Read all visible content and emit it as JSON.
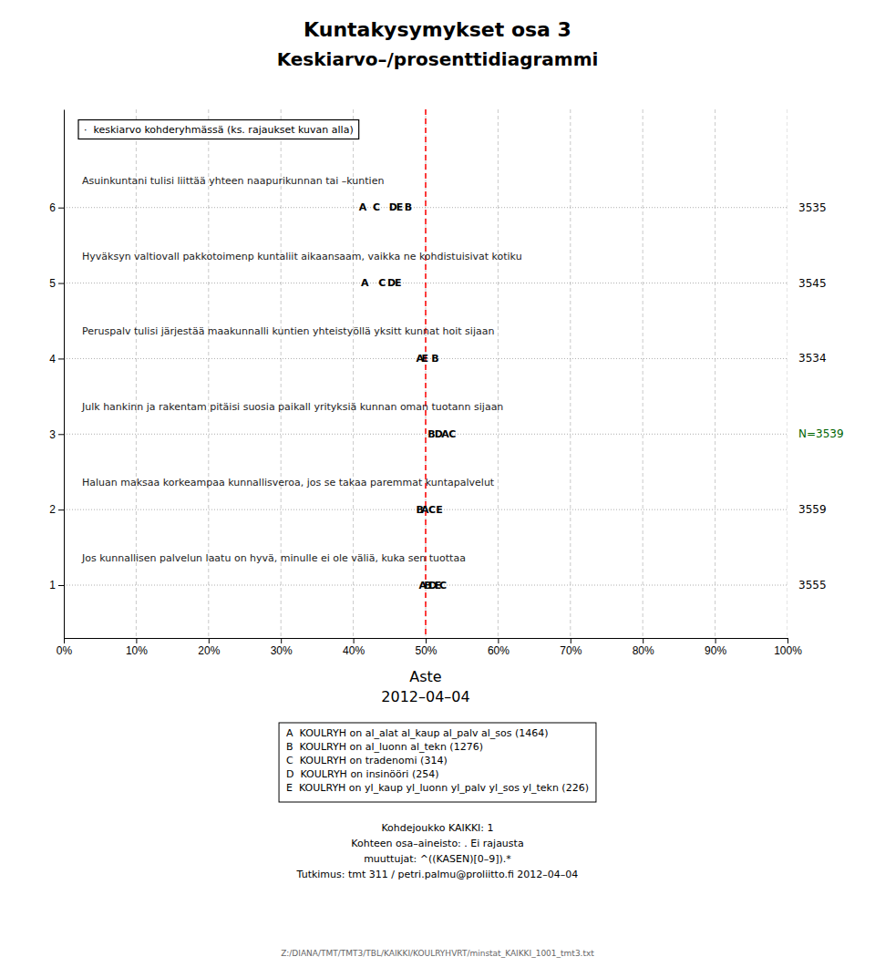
{
  "chart_data": {
    "type": "scatter",
    "title": "Kuntakysymykset osa 3",
    "subtitle": "Keskiarvo–/prosenttidiagrammi",
    "annotations": [
      {
        "text": "·  keskiarvo kohderyhmässä (ks. rajaukset kuvan alla)"
      }
    ],
    "x_label_lines": [
      "Aste",
      "2012–04–04"
    ],
    "xlim": [
      0,
      1
    ],
    "xticks": [
      {
        "value": 0.0,
        "label": "0%"
      },
      {
        "value": 0.1,
        "label": "10%"
      },
      {
        "value": 0.2,
        "label": "20%"
      },
      {
        "value": 0.3,
        "label": "30%"
      },
      {
        "value": 0.4,
        "label": "40%"
      },
      {
        "value": 0.5,
        "label": "50%"
      },
      {
        "value": 0.6,
        "label": "60%"
      },
      {
        "value": 0.7,
        "label": "70%"
      },
      {
        "value": 0.8,
        "label": "80%"
      },
      {
        "value": 0.9,
        "label": "90%"
      },
      {
        "value": 1.0,
        "label": "100%"
      }
    ],
    "ylim": [
      0.3,
      7.3
    ],
    "yticks": [
      1,
      2,
      3,
      4,
      5,
      6
    ],
    "grid": true,
    "marker": "letter",
    "series": [
      {
        "question": "Asuinkuntani tulisi liittää yhteen naapurikunnan tai –kuntien",
        "y": 6,
        "x": [
          0.413,
          0.432,
          0.455,
          0.464,
          0.476
        ],
        "point_labels": [
          "A",
          "C",
          "D",
          "E",
          "B"
        ],
        "n_label": "3535",
        "n_label_color": "black"
      },
      {
        "question": "Hyväksyn valtiovall pakkotoimenp kuntaliit aikaansaam, vaikka ne kohdistuisivat kotiku",
        "y": 5,
        "x": [
          0.416,
          0.44,
          0.453,
          0.462
        ],
        "point_labels": [
          "A",
          "C",
          "D",
          "E"
        ],
        "n_label": "3545",
        "n_label_color": "black"
      },
      {
        "question": "Peruspalv tulisi järjestää maakunnalli kuntien yhteistyöllä yksitt kunnat hoit sijaan",
        "y": 4,
        "x": [
          0.492,
          0.499,
          0.513
        ],
        "point_labels": [
          "A",
          "E",
          "B"
        ],
        "n_label": "3534",
        "n_label_color": "black"
      },
      {
        "question": "Julk hankinn ja rakentam pitäisi suosia paikall yrityksiä kunnan oman tuotann sijaan",
        "y": 3,
        "x": [
          0.508,
          0.518,
          0.527,
          0.537
        ],
        "point_labels": [
          "B",
          "D",
          "A",
          "C"
        ],
        "n_label": "N=3539",
        "n_label_color": "#006400"
      },
      {
        "question": "Haluan maksaa korkeampaa kunnallisveroa, jos se takaa paremmat kuntapalvelut",
        "y": 2,
        "x": [
          0.492,
          0.499,
          0.509,
          0.519
        ],
        "point_labels": [
          "B",
          "A",
          "C",
          "E"
        ],
        "n_label": "3559",
        "n_label_color": "black"
      },
      {
        "question": "Jos kunnallisen palvelun laatu on hyvä, minulle ei ole väliä, kuka sen tuottaa",
        "y": 1,
        "x": [
          0.496,
          0.503,
          0.51,
          0.517,
          0.524
        ],
        "point_labels": [
          "A",
          "B",
          "D",
          "E",
          "C"
        ],
        "n_label": "3555",
        "n_label_color": "black"
      }
    ],
    "reference_lines": [
      {
        "x": 0.5,
        "color": "red"
      }
    ],
    "legend": "bottom",
    "legend_entries": [
      "A  KOULRYH on al_alat al_kaup al_palv al_sos (1464)",
      "B  KOULRYH on al_luonn al_tekn (1276)",
      "C  KOULRYH on tradenomi (314)",
      "D  KOULRYH on insinööri (254)",
      "E  KOULRYH on yl_kaup yl_luonn yl_palv yl_sos yl_tekn (226)"
    ],
    "footer_lines": [
      "Kohdejoukko KAIKKI: 1",
      "Kohteen osa–aineisto: . Ei rajausta",
      "muuttujat: ^((KASEN)[0–9]).*",
      "Tutkimus: tmt 311 / petri.palmu@proliitto.fi 2012–04–04"
    ],
    "file_path": "Z:/DIANA/TMT/TMT3/TBL/KAIKKI/KOULRYHVRT/minstat_KAIKKI_1001_tmt3.txt"
  }
}
